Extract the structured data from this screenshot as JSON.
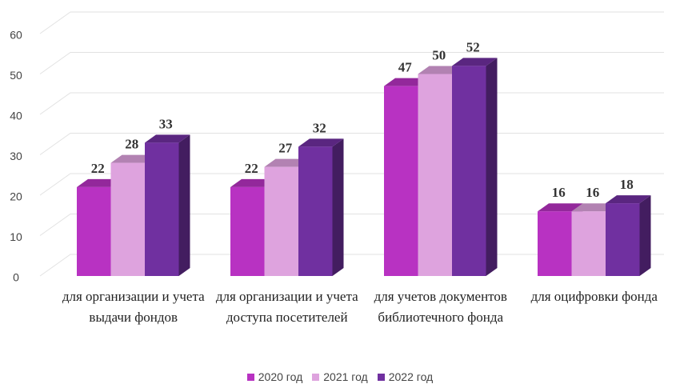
{
  "chart_data": {
    "type": "bar3d",
    "categories": [
      "для организации и учета выдачи фондов",
      "для организации и учета доступа посетителей",
      "для учетов документов библиотечного фонда",
      "для оцифровки фонда"
    ],
    "series": [
      {
        "name": "2020 год",
        "color": "#b832c2",
        "values": [
          22,
          22,
          47,
          16
        ]
      },
      {
        "name": "2021 год",
        "color": "#dea3de",
        "values": [
          28,
          27,
          50,
          16
        ]
      },
      {
        "name": "2022 год",
        "color": "#7030a0",
        "values": [
          33,
          32,
          52,
          18
        ]
      }
    ],
    "ylim": [
      0,
      60
    ],
    "yticks": [
      0,
      10,
      20,
      30,
      40,
      50,
      60
    ],
    "grid": true,
    "legend": "bottom"
  }
}
